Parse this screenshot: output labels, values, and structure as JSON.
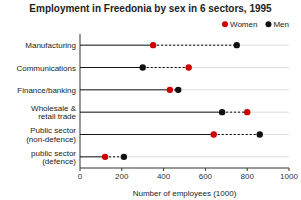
{
  "chart_data": {
    "type": "dot",
    "title": "Employment in Freedonia by sex in 6 sectors, 1995",
    "xlabel": "Number of employees (1000)",
    "categories": [
      "Manufacturing",
      "Communications",
      "Finance/banking",
      "Wholesale &\nretail trade",
      "Public sector\n(non-defence)",
      "public sector\n(defence)"
    ],
    "series": [
      {
        "name": "Women",
        "color": "#cc0000",
        "values": [
          350,
          520,
          430,
          800,
          640,
          120
        ]
      },
      {
        "name": "Men",
        "color": "#111111",
        "values": [
          750,
          300,
          470,
          680,
          860,
          210
        ]
      }
    ],
    "xlim": [
      0,
      1000
    ],
    "xticks": [
      0,
      200,
      400,
      600,
      800,
      1000
    ],
    "orientation": "horizontal",
    "grid": true,
    "legend": "upper right"
  }
}
